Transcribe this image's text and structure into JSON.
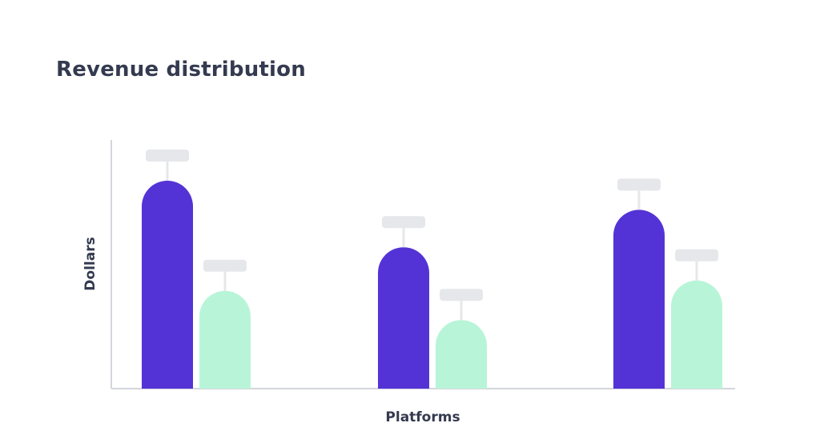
{
  "chart_data": {
    "type": "bar",
    "title": "Revenue distribution",
    "xlabel": "Platforms",
    "ylabel": "Dollars",
    "categories": [
      "",
      "",
      ""
    ],
    "series": [
      {
        "values": [
          100,
          68,
          86
        ],
        "color": "#5433d6"
      },
      {
        "values": [
          47,
          33,
          52
        ],
        "color": "#b8f5d8"
      }
    ],
    "ylim": [
      0,
      100
    ],
    "grid": false,
    "legend": "none",
    "data_labels": "placeholder-bubbles"
  }
}
